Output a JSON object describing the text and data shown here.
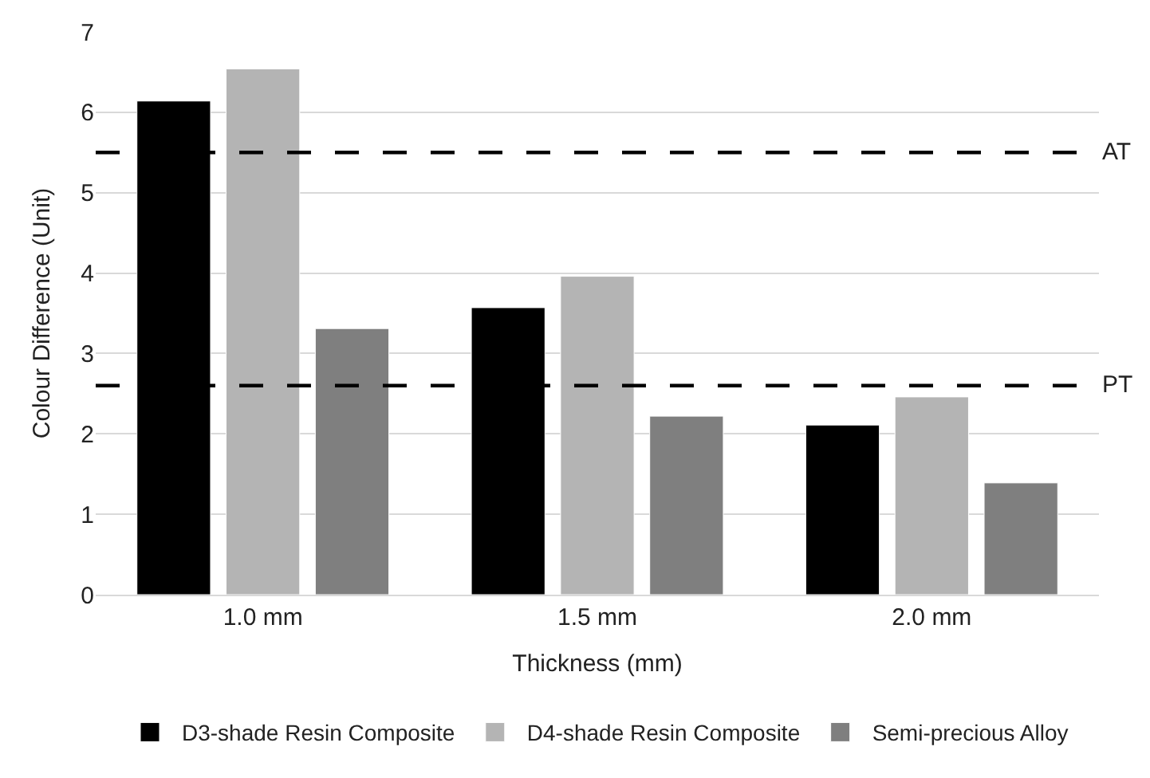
{
  "chart_data": {
    "type": "bar",
    "categories": [
      "1.0 mm",
      "1.5 mm",
      "2.0 mm"
    ],
    "xlabel": "Thickness (mm)",
    "ylabel": "Colour Difference (Unit)",
    "series": [
      {
        "name": "D3-shade Resin Composite",
        "color": "#000000",
        "values": [
          6.14,
          3.57,
          2.11
        ]
      },
      {
        "name": "D4-shade Resin Composite",
        "color": "#b4b4b4",
        "values": [
          6.54,
          3.96,
          2.46
        ]
      },
      {
        "name": "Semi-precious Alloy",
        "color": "#7f7f7f",
        "values": [
          3.31,
          2.22,
          1.39
        ]
      }
    ],
    "ylim": [
      0,
      7
    ],
    "yticks": [
      0,
      1,
      2,
      3,
      4,
      5,
      6,
      7
    ],
    "grid": "y",
    "legend": "bottom",
    "ref_lines": [
      {
        "axis": "y",
        "value": 5.5,
        "label": "AT",
        "color": "#000000",
        "line_style": "dashed"
      },
      {
        "axis": "y",
        "value": 2.6,
        "label": "PT",
        "color": "#000000",
        "line_style": "dashed"
      }
    ]
  }
}
